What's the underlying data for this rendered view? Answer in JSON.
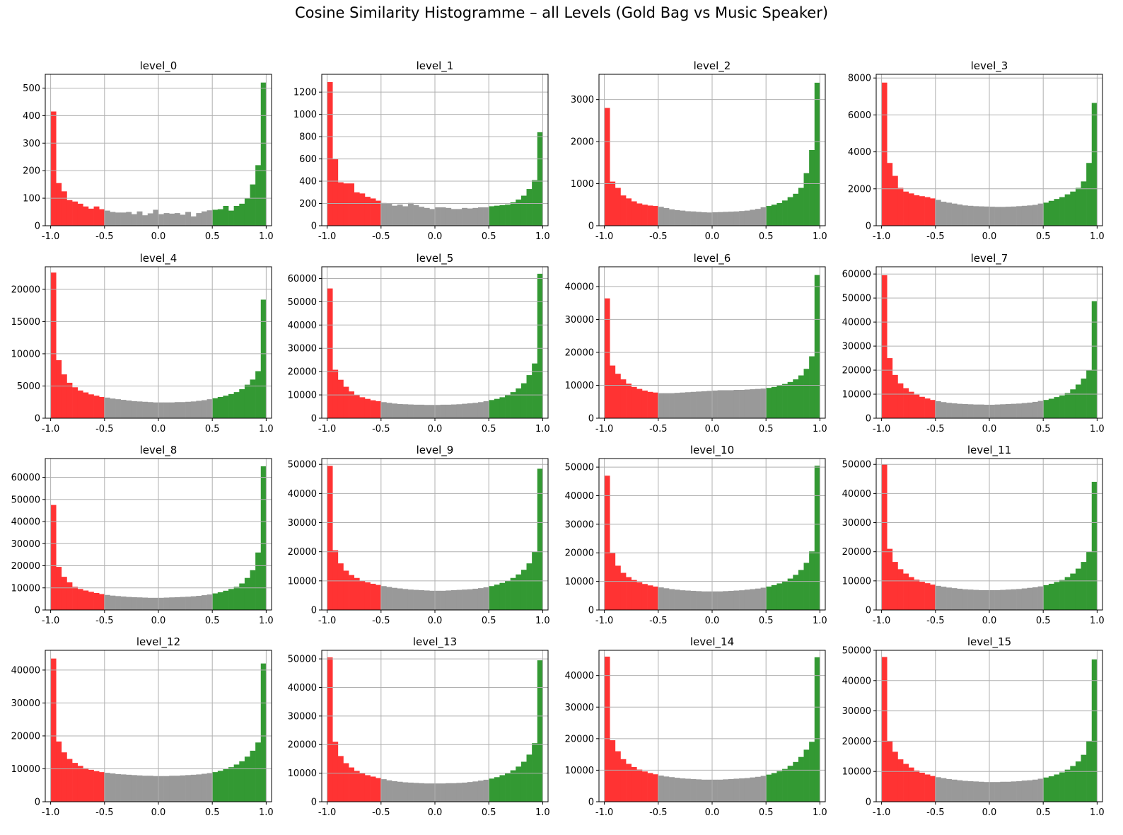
{
  "title": "Cosine Similarity Histogramme – all Levels (Gold Bag vs Music Speaker)",
  "colors": {
    "negative": "#ff3333",
    "neutral": "#999999",
    "positive": "#339933",
    "grid": "#b0b0b0"
  },
  "chart_data": [
    {
      "type": "bar",
      "title": "level_0",
      "xlim": [
        -1.05,
        1.05
      ],
      "ylim": [
        0,
        550
      ],
      "yticks": [
        0,
        100,
        200,
        300,
        400,
        500
      ],
      "xticks": [
        -1.0,
        -0.5,
        0.0,
        0.5,
        1.0
      ],
      "bins": 40,
      "values": [
        415,
        155,
        125,
        93,
        88,
        80,
        70,
        62,
        70,
        60,
        55,
        50,
        48,
        48,
        50,
        42,
        52,
        38,
        45,
        58,
        42,
        46,
        44,
        46,
        40,
        50,
        34,
        46,
        52,
        56,
        58,
        60,
        72,
        55,
        72,
        80,
        100,
        150,
        220,
        520
      ]
    },
    {
      "type": "bar",
      "title": "level_1",
      "xlim": [
        -1.05,
        1.05
      ],
      "ylim": [
        0,
        1360
      ],
      "yticks": [
        0,
        200,
        400,
        600,
        800,
        1000,
        1200
      ],
      "xticks": [
        -1.0,
        -0.5,
        0.0,
        0.5,
        1.0
      ],
      "bins": 40,
      "values": [
        1290,
        600,
        390,
        380,
        380,
        300,
        290,
        260,
        245,
        225,
        205,
        200,
        180,
        190,
        175,
        205,
        185,
        170,
        160,
        150,
        165,
        165,
        160,
        150,
        150,
        160,
        155,
        160,
        165,
        165,
        175,
        180,
        185,
        190,
        210,
        235,
        270,
        330,
        410,
        840
      ]
    },
    {
      "type": "bar",
      "title": "level_2",
      "xlim": [
        -1.05,
        1.05
      ],
      "ylim": [
        0,
        3600
      ],
      "yticks": [
        0,
        1000,
        2000,
        3000
      ],
      "xticks": [
        -1.0,
        -0.5,
        0.0,
        0.5,
        1.0
      ],
      "bins": 40,
      "values": [
        2800,
        1050,
        900,
        720,
        650,
        580,
        530,
        500,
        480,
        470,
        450,
        420,
        390,
        370,
        360,
        345,
        340,
        330,
        320,
        315,
        320,
        325,
        330,
        335,
        340,
        350,
        360,
        380,
        400,
        440,
        470,
        500,
        540,
        600,
        680,
        760,
        900,
        1250,
        1800,
        3400
      ]
    },
    {
      "type": "bar",
      "title": "level_3",
      "xlim": [
        -1.05,
        1.05
      ],
      "ylim": [
        0,
        8200
      ],
      "yticks": [
        0,
        2000,
        4000,
        6000,
        8000
      ],
      "xticks": [
        -1.0,
        -0.5,
        0.0,
        0.5,
        1.0
      ],
      "bins": 40,
      "values": [
        7750,
        3400,
        2700,
        2050,
        1850,
        1750,
        1650,
        1600,
        1550,
        1480,
        1400,
        1300,
        1250,
        1200,
        1150,
        1100,
        1080,
        1060,
        1050,
        1040,
        1030,
        1020,
        1020,
        1030,
        1040,
        1060,
        1080,
        1100,
        1130,
        1200,
        1250,
        1350,
        1450,
        1550,
        1700,
        1850,
        2050,
        2400,
        3400,
        6650
      ]
    },
    {
      "type": "bar",
      "title": "level_4",
      "xlim": [
        -1.05,
        1.05
      ],
      "ylim": [
        0,
        23500
      ],
      "yticks": [
        0,
        5000,
        10000,
        15000,
        20000
      ],
      "xticks": [
        -1.0,
        -0.5,
        0.0,
        0.5,
        1.0
      ],
      "bins": 40,
      "values": [
        22600,
        9000,
        6800,
        5500,
        4800,
        4300,
        4000,
        3700,
        3500,
        3300,
        3200,
        3050,
        2950,
        2850,
        2750,
        2650,
        2600,
        2550,
        2500,
        2450,
        2450,
        2450,
        2450,
        2500,
        2500,
        2550,
        2600,
        2700,
        2800,
        2950,
        3100,
        3300,
        3500,
        3750,
        4050,
        4500,
        5200,
        6000,
        7300,
        18400
      ]
    },
    {
      "type": "bar",
      "title": "level_5",
      "xlim": [
        -1.05,
        1.05
      ],
      "ylim": [
        0,
        65000
      ],
      "yticks": [
        0,
        10000,
        20000,
        30000,
        40000,
        50000,
        60000
      ],
      "xticks": [
        -1.0,
        -0.5,
        0.0,
        0.5,
        1.0
      ],
      "bins": 40,
      "values": [
        55700,
        20800,
        16500,
        13500,
        11500,
        10000,
        9000,
        8300,
        7700,
        7300,
        6900,
        6600,
        6300,
        6100,
        6000,
        5900,
        5800,
        5800,
        5700,
        5700,
        5700,
        5800,
        5800,
        5900,
        6000,
        6200,
        6400,
        6600,
        6900,
        7300,
        7800,
        8300,
        9000,
        10000,
        11200,
        12800,
        15000,
        18500,
        23500,
        62000
      ]
    },
    {
      "type": "bar",
      "title": "level_6",
      "xlim": [
        -1.05,
        1.05
      ],
      "ylim": [
        0,
        46000
      ],
      "yticks": [
        0,
        10000,
        20000,
        30000,
        40000
      ],
      "xticks": [
        -1.0,
        -0.5,
        0.0,
        0.5,
        1.0
      ],
      "bins": 40,
      "values": [
        36400,
        16000,
        13500,
        11800,
        10500,
        9500,
        8900,
        8400,
        8000,
        7800,
        7600,
        7600,
        7600,
        7700,
        7800,
        7900,
        8000,
        8100,
        8200,
        8300,
        8400,
        8500,
        8500,
        8500,
        8600,
        8600,
        8700,
        8800,
        8900,
        9000,
        9200,
        9500,
        9900,
        10400,
        11000,
        11800,
        13000,
        15000,
        18800,
        43500
      ]
    },
    {
      "type": "bar",
      "title": "level_7",
      "xlim": [
        -1.05,
        1.05
      ],
      "ylim": [
        0,
        63000
      ],
      "yticks": [
        0,
        10000,
        20000,
        30000,
        40000,
        50000,
        60000
      ],
      "xticks": [
        -1.0,
        -0.5,
        0.0,
        0.5,
        1.0
      ],
      "bins": 40,
      "values": [
        59500,
        25000,
        18000,
        14500,
        12500,
        11000,
        9800,
        8900,
        8200,
        7600,
        7100,
        6700,
        6400,
        6200,
        6000,
        5900,
        5800,
        5700,
        5700,
        5600,
        5600,
        5700,
        5800,
        5900,
        6000,
        6100,
        6300,
        6500,
        6800,
        7200,
        7600,
        8100,
        8800,
        9500,
        10500,
        12000,
        14000,
        16500,
        20000,
        48700
      ]
    },
    {
      "type": "bar",
      "title": "level_8",
      "xlim": [
        -1.05,
        1.05
      ],
      "ylim": [
        0,
        68500
      ],
      "yticks": [
        0,
        10000,
        20000,
        30000,
        40000,
        50000,
        60000
      ],
      "xticks": [
        -1.0,
        -0.5,
        0.0,
        0.5,
        1.0
      ],
      "bins": 40,
      "values": [
        47500,
        19500,
        15000,
        12500,
        10500,
        9500,
        8800,
        8200,
        7700,
        7200,
        6800,
        6500,
        6300,
        6100,
        5900,
        5800,
        5700,
        5600,
        5500,
        5500,
        5500,
        5600,
        5700,
        5800,
        5900,
        6000,
        6200,
        6400,
        6700,
        7000,
        7500,
        8000,
        8700,
        9500,
        10500,
        12000,
        14500,
        18000,
        26000,
        65000
      ]
    },
    {
      "type": "bar",
      "title": "level_9",
      "xlim": [
        -1.05,
        1.05
      ],
      "ylim": [
        0,
        52000
      ],
      "yticks": [
        0,
        10000,
        20000,
        30000,
        40000,
        50000
      ],
      "xticks": [
        -1.0,
        -0.5,
        0.0,
        0.5,
        1.0
      ],
      "bins": 40,
      "values": [
        49500,
        20500,
        16000,
        13500,
        12000,
        11000,
        10000,
        9500,
        9000,
        8600,
        8200,
        7900,
        7600,
        7400,
        7200,
        7000,
        6900,
        6800,
        6700,
        6600,
        6600,
        6600,
        6700,
        6800,
        6900,
        7000,
        7100,
        7300,
        7500,
        7800,
        8200,
        8700,
        9300,
        10000,
        11000,
        12200,
        13800,
        16000,
        20000,
        48500
      ]
    },
    {
      "type": "bar",
      "title": "level_10",
      "xlim": [
        -1.05,
        1.05
      ],
      "ylim": [
        0,
        53000
      ],
      "yticks": [
        0,
        10000,
        20000,
        30000,
        40000,
        50000
      ],
      "xticks": [
        -1.0,
        -0.5,
        0.0,
        0.5,
        1.0
      ],
      "bins": 40,
      "values": [
        47000,
        20000,
        15500,
        13000,
        11500,
        10500,
        9700,
        9100,
        8600,
        8200,
        7900,
        7600,
        7300,
        7100,
        6900,
        6800,
        6700,
        6600,
        6500,
        6500,
        6500,
        6500,
        6600,
        6700,
        6800,
        6900,
        7100,
        7300,
        7500,
        7800,
        8200,
        8700,
        9300,
        10000,
        11000,
        12300,
        14000,
        16500,
        20500,
        50500
      ]
    },
    {
      "type": "bar",
      "title": "level_11",
      "xlim": [
        -1.05,
        1.05
      ],
      "ylim": [
        0,
        52000
      ],
      "yticks": [
        0,
        10000,
        20000,
        30000,
        40000,
        50000
      ],
      "xticks": [
        -1.0,
        -0.5,
        0.0,
        0.5,
        1.0
      ],
      "bins": 40,
      "values": [
        50000,
        21000,
        16500,
        14000,
        12500,
        11300,
        10400,
        9700,
        9200,
        8700,
        8300,
        8000,
        7700,
        7500,
        7300,
        7100,
        7000,
        6900,
        6800,
        6800,
        6800,
        6800,
        6900,
        7000,
        7100,
        7200,
        7400,
        7600,
        7800,
        8100,
        8500,
        9000,
        9600,
        10300,
        11300,
        12500,
        14200,
        16500,
        20000,
        44000
      ]
    },
    {
      "type": "bar",
      "title": "level_12",
      "xlim": [
        -1.05,
        1.05
      ],
      "ylim": [
        0,
        46000
      ],
      "yticks": [
        0,
        10000,
        20000,
        30000,
        40000
      ],
      "xticks": [
        -1.0,
        -0.5,
        0.0,
        0.5,
        1.0
      ],
      "bins": 40,
      "values": [
        43500,
        18300,
        15000,
        13000,
        11800,
        10900,
        10200,
        9700,
        9300,
        9000,
        8800,
        8600,
        8400,
        8300,
        8200,
        8100,
        8000,
        7900,
        7900,
        7800,
        7800,
        7800,
        7900,
        7900,
        8000,
        8100,
        8200,
        8300,
        8500,
        8700,
        9000,
        9400,
        9900,
        10500,
        11300,
        12300,
        13700,
        15500,
        18000,
        42000
      ]
    },
    {
      "type": "bar",
      "title": "level_13",
      "xlim": [
        -1.05,
        1.05
      ],
      "ylim": [
        0,
        53000
      ],
      "yticks": [
        0,
        10000,
        20000,
        30000,
        40000,
        50000
      ],
      "xticks": [
        -1.0,
        -0.5,
        0.0,
        0.5,
        1.0
      ],
      "bins": 40,
      "values": [
        50500,
        21000,
        16000,
        13500,
        12000,
        10800,
        10000,
        9300,
        8800,
        8300,
        7900,
        7500,
        7200,
        7000,
        6800,
        6700,
        6600,
        6500,
        6400,
        6400,
        6400,
        6400,
        6500,
        6500,
        6600,
        6700,
        6900,
        7100,
        7400,
        7700,
        8100,
        8600,
        9300,
        10000,
        11000,
        12300,
        14000,
        16500,
        20500,
        49500
      ]
    },
    {
      "type": "bar",
      "title": "level_14",
      "xlim": [
        -1.05,
        1.05
      ],
      "ylim": [
        0,
        48000
      ],
      "yticks": [
        0,
        10000,
        20000,
        30000,
        40000
      ],
      "xticks": [
        -1.0,
        -0.5,
        0.0,
        0.5,
        1.0
      ],
      "bins": 40,
      "values": [
        46000,
        19500,
        16000,
        13500,
        12000,
        11000,
        10200,
        9600,
        9100,
        8700,
        8300,
        8000,
        7800,
        7600,
        7400,
        7300,
        7200,
        7100,
        7000,
        7000,
        7000,
        7000,
        7100,
        7200,
        7300,
        7400,
        7500,
        7700,
        7900,
        8200,
        8600,
        9100,
        9700,
        10400,
        11400,
        12600,
        14200,
        16500,
        19000,
        45800
      ]
    },
    {
      "type": "bar",
      "title": "level_15",
      "xlim": [
        -1.05,
        1.05
      ],
      "ylim": [
        0,
        50000
      ],
      "yticks": [
        0,
        10000,
        20000,
        30000,
        40000,
        50000
      ],
      "xticks": [
        -1.0,
        -0.5,
        0.0,
        0.5,
        1.0
      ],
      "bins": 40,
      "values": [
        47800,
        20000,
        16500,
        14000,
        12500,
        11300,
        10300,
        9600,
        9000,
        8500,
        8100,
        7800,
        7500,
        7300,
        7100,
        6900,
        6800,
        6700,
        6600,
        6500,
        6500,
        6500,
        6600,
        6600,
        6700,
        6800,
        7000,
        7100,
        7300,
        7600,
        8000,
        8400,
        9000,
        9700,
        10600,
        11800,
        13300,
        15500,
        20000,
        47000
      ]
    }
  ]
}
